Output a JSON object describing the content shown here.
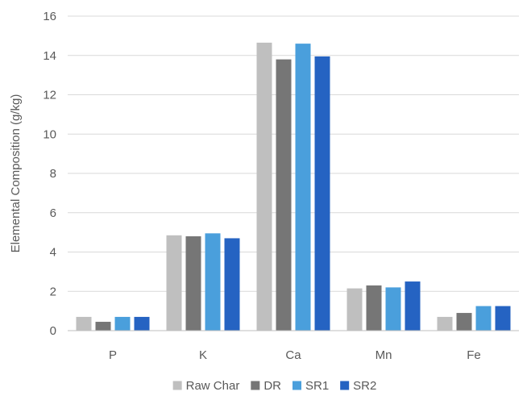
{
  "chart_data": {
    "type": "bar",
    "title": "",
    "xlabel": "",
    "ylabel": "Elemental Composition (g/kg)",
    "categories": [
      "P",
      "K",
      "Ca",
      "Mn",
      "Fe"
    ],
    "ylim": [
      0,
      16
    ],
    "yticks": [
      0,
      2,
      4,
      6,
      8,
      10,
      12,
      14,
      16
    ],
    "grid": true,
    "legend_position": "bottom",
    "series": [
      {
        "name": "Raw Char",
        "color": "#bfbfbf",
        "values": [
          0.7,
          4.85,
          14.65,
          2.15,
          0.7
        ]
      },
      {
        "name": "DR",
        "color": "#767676",
        "values": [
          0.45,
          4.8,
          13.8,
          2.3,
          0.9
        ]
      },
      {
        "name": "SR1",
        "color": "#4a9fdc",
        "values": [
          0.7,
          4.95,
          14.6,
          2.2,
          1.25
        ]
      },
      {
        "name": "SR2",
        "color": "#2563c2",
        "values": [
          0.7,
          4.7,
          13.95,
          2.5,
          1.25
        ]
      }
    ]
  }
}
